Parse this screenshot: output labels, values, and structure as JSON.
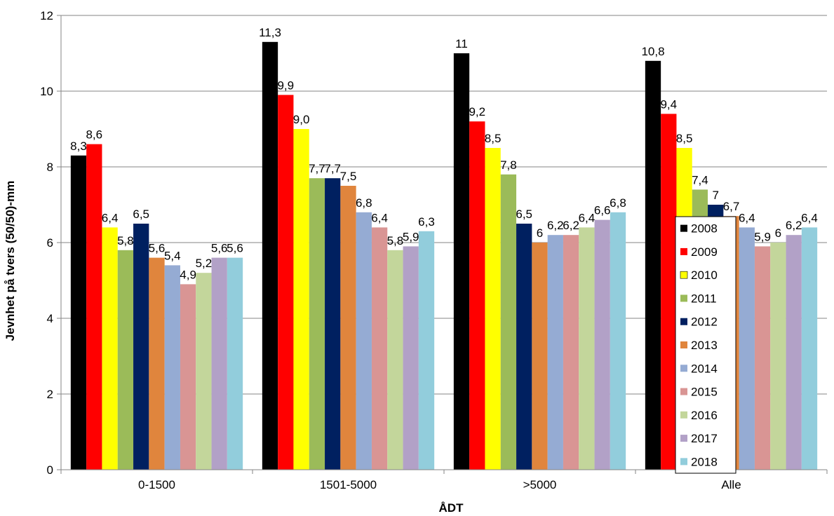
{
  "chart_data": {
    "type": "bar",
    "title": "",
    "xlabel": "ÅDT",
    "ylabel": "Jevnhet på tvers (50/50)-mm",
    "ylim": [
      0,
      12
    ],
    "yticks": [
      0,
      2,
      4,
      6,
      8,
      10,
      12
    ],
    "grid": true,
    "legend_position": "right",
    "categories": [
      "0-1500",
      "1501-5000",
      ">5000",
      "Alle"
    ],
    "series": [
      {
        "name": "2008",
        "color": "#000000",
        "values": [
          8.3,
          11.3,
          11.0,
          10.8
        ],
        "labels": [
          "8,3",
          "11,3",
          "11",
          "10,8"
        ]
      },
      {
        "name": "2009",
        "color": "#ff0000",
        "values": [
          8.6,
          9.9,
          9.2,
          9.4
        ],
        "labels": [
          "8,6",
          "9,9",
          "9,2",
          "9,4"
        ]
      },
      {
        "name": "2010",
        "color": "#ffff00",
        "values": [
          6.4,
          9.0,
          8.5,
          8.5
        ],
        "labels": [
          "6,4",
          "9,0",
          "8,5",
          "8,5"
        ]
      },
      {
        "name": "2011",
        "color": "#9bbb59",
        "values": [
          5.8,
          7.7,
          7.8,
          7.4
        ],
        "labels": [
          "5,8",
          "7,7",
          "7,8",
          "7,4"
        ]
      },
      {
        "name": "2012",
        "color": "#002060",
        "values": [
          6.5,
          7.7,
          6.5,
          7.0
        ],
        "labels": [
          "6,5",
          "7,7",
          "6,5",
          "7"
        ]
      },
      {
        "name": "2013",
        "color": "#e0853d",
        "values": [
          5.6,
          7.5,
          6.0,
          6.7
        ],
        "labels": [
          "5,6",
          "7,5",
          "6",
          "6,7"
        ]
      },
      {
        "name": "2014",
        "color": "#95abd3",
        "values": [
          5.4,
          6.8,
          6.2,
          6.4
        ],
        "labels": [
          "5,4",
          "6,8",
          "6,2",
          "6,4"
        ]
      },
      {
        "name": "2015",
        "color": "#d99594",
        "values": [
          4.9,
          6.4,
          6.2,
          5.9
        ],
        "labels": [
          "4,9",
          "6,4",
          "6,2",
          "5,9"
        ]
      },
      {
        "name": "2016",
        "color": "#c3d69b",
        "values": [
          5.2,
          5.8,
          6.4,
          6.0
        ],
        "labels": [
          "5,2",
          "5,8",
          "6,4",
          "6"
        ]
      },
      {
        "name": "2017",
        "color": "#b2a1c7",
        "values": [
          5.6,
          5.9,
          6.6,
          6.2
        ],
        "labels": [
          "5,6",
          "5,9",
          "6,6",
          "6,2"
        ]
      },
      {
        "name": "2018",
        "color": "#92cddc",
        "values": [
          5.6,
          6.3,
          6.8,
          6.4
        ],
        "labels": [
          "5,6",
          "6,3",
          "6,8",
          "6,4"
        ]
      }
    ]
  }
}
